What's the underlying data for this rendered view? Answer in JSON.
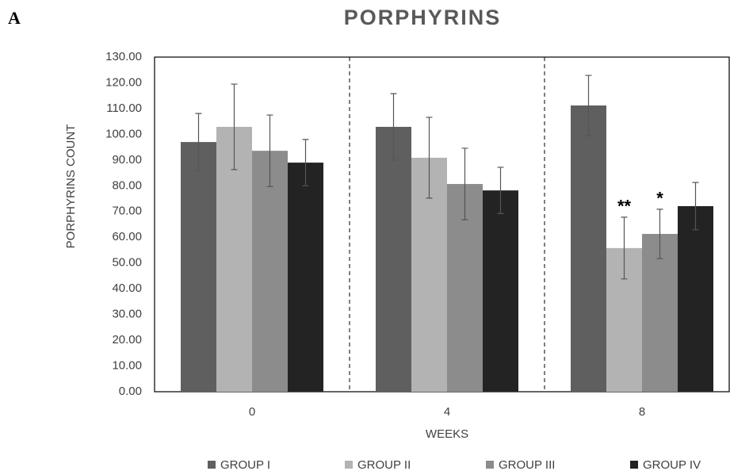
{
  "panel_label": "A",
  "chart_data": {
    "type": "bar",
    "title": "PORPHYRINS",
    "xlabel": "WEEKS",
    "ylabel": "PORPHYRINS COUNT",
    "categories": [
      "0",
      "4",
      "8"
    ],
    "series": [
      {
        "name": "GROUP I",
        "color": "#5f5f5f",
        "values": [
          97.0,
          102.9,
          111.2
        ],
        "errors": [
          11.1,
          12.9,
          11.7
        ]
      },
      {
        "name": "GROUP II",
        "color": "#b3b3b3",
        "values": [
          102.9,
          90.9,
          55.8
        ],
        "errors": [
          16.6,
          15.7,
          12.0
        ]
      },
      {
        "name": "GROUP III",
        "color": "#8c8c8c",
        "values": [
          93.6,
          80.7,
          61.3
        ],
        "errors": [
          13.9,
          13.9,
          9.6
        ]
      },
      {
        "name": "GROUP IV",
        "color": "#232323",
        "values": [
          89.0,
          78.2,
          72.1
        ],
        "errors": [
          9.0,
          9.0,
          9.2
        ]
      }
    ],
    "annotations": [
      {
        "text": "**",
        "x": "8",
        "series": "GROUP II"
      },
      {
        "text": "*",
        "x": "8",
        "series": "GROUP III"
      }
    ],
    "ylim": [
      0,
      130
    ],
    "yticks": [
      {
        "value": 0,
        "label": "0.00"
      },
      {
        "value": 10,
        "label": "10.00"
      },
      {
        "value": 20,
        "label": "20.00"
      },
      {
        "value": 30,
        "label": "30.00"
      },
      {
        "value": 40,
        "label": "40.00"
      },
      {
        "value": 50,
        "label": "50.00"
      },
      {
        "value": 60,
        "label": "60.00"
      },
      {
        "value": 70,
        "label": "70.00"
      },
      {
        "value": 80,
        "label": "80.00"
      },
      {
        "value": 90,
        "label": "90.00"
      },
      {
        "value": 100,
        "label": "100.00"
      },
      {
        "value": 110,
        "label": "110.00"
      },
      {
        "value": 120,
        "label": "120.00"
      },
      {
        "value": 130,
        "label": "130.00"
      }
    ],
    "grid": false,
    "legend": "bottom"
  }
}
